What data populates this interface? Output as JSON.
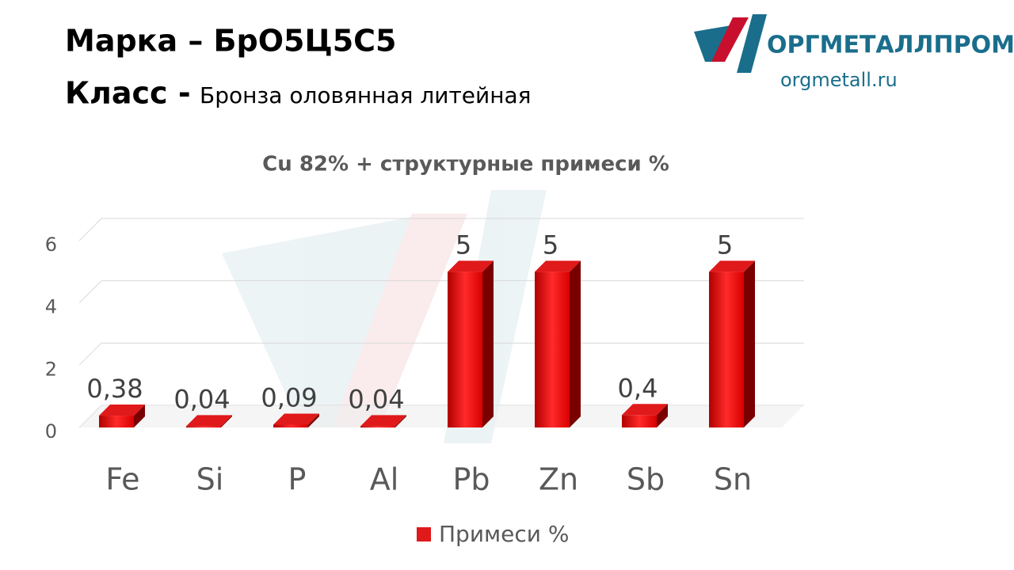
{
  "header": {
    "title": "Марка – БрО5Ц5С5",
    "class_label": "Класс -",
    "class_value": "Бронза оловянная литейная"
  },
  "logo": {
    "name": "ОРГМЕТАЛЛПРОМ",
    "url": "orgmetall.ru"
  },
  "chart_data": {
    "type": "bar3d",
    "title": "Cu 82% + структурные примеси %",
    "categories": [
      "Fe",
      "Si",
      "P",
      "Al",
      "Pb",
      "Zn",
      "Sb",
      "Sn"
    ],
    "series": [
      {
        "name": "Примеси %",
        "color": "#e0191a",
        "values": [
          0.38,
          0.04,
          0.09,
          0.04,
          5,
          5,
          0.4,
          5
        ],
        "value_labels": [
          "0,38",
          "0,04",
          "0,09",
          "0,04",
          "5",
          "5",
          "0,4",
          "5"
        ]
      }
    ],
    "ylim": [
      0,
      6
    ],
    "yticks": [
      0,
      2,
      4,
      6
    ],
    "grid": true,
    "legend": "bottom"
  }
}
